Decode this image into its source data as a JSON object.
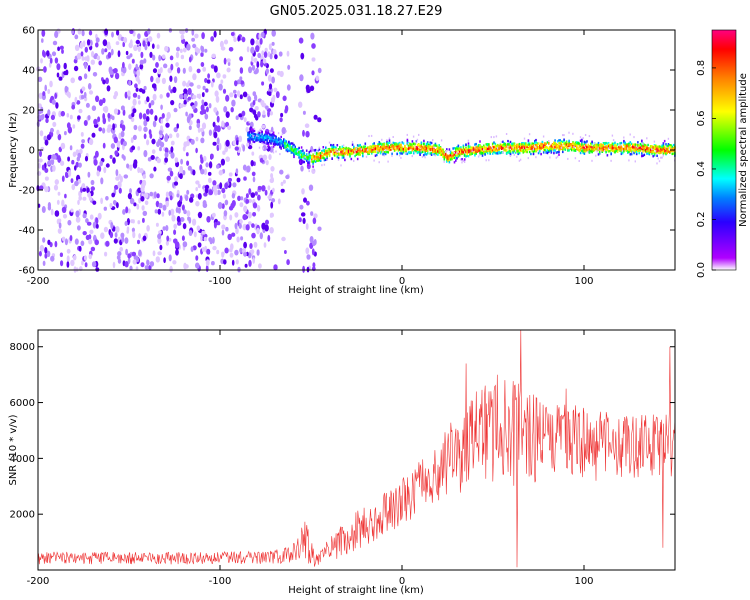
{
  "title": "GN05.2025.031.18.27.E29",
  "chart_data": [
    {
      "type": "heatmap",
      "xlabel": "Height of straight line (km)",
      "ylabel": "Frequency (Hz)",
      "xlim": [
        -200,
        150
      ],
      "ylim": [
        -60,
        60
      ],
      "xticks": [
        -200,
        -100,
        0,
        100
      ],
      "yticks": [
        -60,
        -40,
        -20,
        0,
        20,
        40,
        60
      ],
      "colorbar": {
        "label": "Normalized spectral amplitude",
        "range": [
          0,
          0.95
        ],
        "ticks": [
          0.0,
          0.2,
          0.4,
          0.6,
          0.8
        ]
      },
      "noise_region_x": [
        -200,
        -45
      ],
      "noise_gap_x": [
        -62,
        -56
      ],
      "signal_start_x": -85,
      "ridge": {
        "x": [
          -85,
          -75,
          -70,
          -65,
          -60,
          -55,
          -50,
          -45,
          -40,
          -30,
          -20,
          -10,
          0,
          10,
          20,
          25,
          30,
          40,
          50,
          60,
          70,
          80,
          90,
          100,
          110,
          120,
          130,
          140,
          150
        ],
        "freq": [
          7,
          6,
          5,
          3,
          0,
          -3,
          -4,
          -3,
          -1,
          -1,
          0,
          1,
          1,
          1,
          0,
          -4,
          -1,
          0,
          1,
          1,
          1,
          2,
          2,
          1,
          1,
          1,
          1,
          0,
          0
        ]
      }
    },
    {
      "type": "line",
      "xlabel": "Height of straight line (km)",
      "ylabel": "SNR (10 * v/v)",
      "xlim": [
        -200,
        150
      ],
      "ylim": [
        0,
        8600
      ],
      "xticks": [
        -200,
        -100,
        0,
        100
      ],
      "yticks": [
        2000,
        4000,
        6000,
        8000
      ],
      "series": [
        {
          "color": "#ee3333",
          "envelope": {
            "x": [
              -200,
              -150,
              -100,
              -75,
              -60,
              -53,
              -48,
              -43,
              -35,
              -25,
              -15,
              -5,
              5,
              15,
              25,
              35,
              45,
              60,
              80,
              100,
              120,
              150
            ],
            "low": [
              200,
              200,
              200,
              220,
              250,
              300,
              100,
              150,
              400,
              700,
              1000,
              1400,
              1800,
              2200,
              2600,
              2800,
              2900,
              3000,
              3100,
              3200,
              3200,
              3300
            ],
            "high": [
              650,
              650,
              650,
              700,
              900,
              1900,
              600,
              900,
              1500,
              2100,
              2500,
              3000,
              3600,
              4300,
              5200,
              6200,
              6600,
              6900,
              6300,
              5800,
              5600,
              5600
            ]
          },
          "spikes": [
            {
              "x": 65,
              "y": 8600
            },
            {
              "x": 35,
              "y": 7400
            },
            {
              "x": 52,
              "y": 7000
            },
            {
              "x": 147,
              "y": 8000
            },
            {
              "x": 90,
              "y": 6500
            },
            {
              "x": 63,
              "y": 100
            },
            {
              "x": 143,
              "y": 800
            }
          ]
        }
      ]
    }
  ]
}
